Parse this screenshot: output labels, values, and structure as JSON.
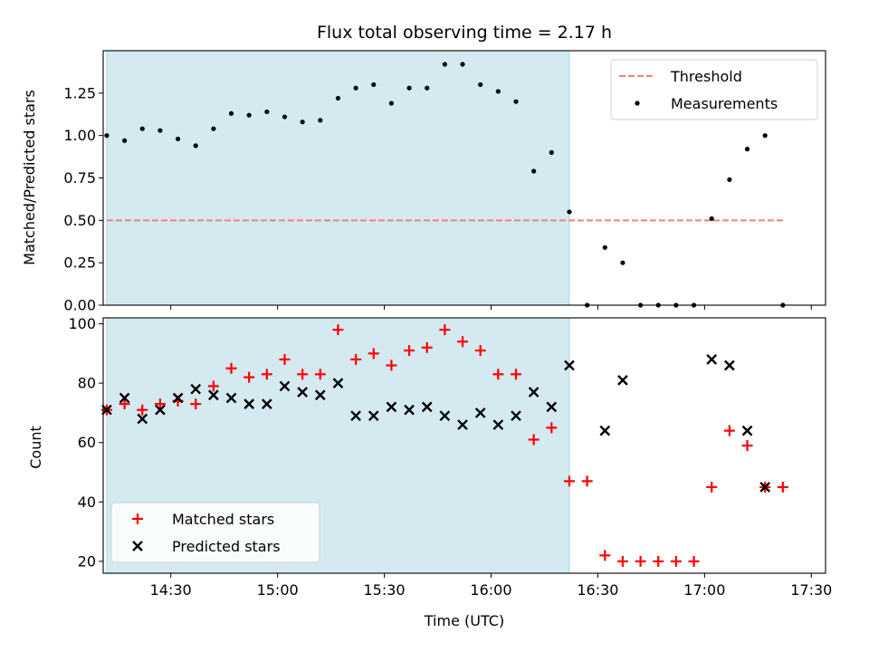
{
  "chart_data": [
    {
      "type": "scatter",
      "title": "Flux total observing time = 2.17 h",
      "xlabel": "",
      "ylabel": "Matched/Predicted stars",
      "xlim": [
        "14:11",
        "17:34"
      ],
      "ylim": [
        0,
        1.5
      ],
      "yticks": [
        0.0,
        0.25,
        0.5,
        0.75,
        1.0,
        1.25
      ],
      "ytick_labels": [
        "0.00",
        "0.25",
        "0.50",
        "0.75",
        "1.00",
        "1.25"
      ],
      "xticks": [
        "14:30",
        "15:00",
        "15:30",
        "16:00",
        "16:30",
        "17:00",
        "17:30"
      ],
      "xtick_labels": [
        "",
        "",
        "",
        "",
        "",
        "",
        ""
      ],
      "grid": false,
      "legend_position": "top-right",
      "shaded_region": {
        "from": "14:12",
        "to": "16:22",
        "color": "#d4eaf0"
      },
      "threshold": {
        "name": "Threshold",
        "value": 0.5,
        "x_from": "14:12",
        "x_to": "17:22",
        "color": "#f08080",
        "style": "dashed"
      },
      "series": [
        {
          "name": "Measurements",
          "marker": "dot",
          "color": "#000000",
          "points": [
            {
              "x": "14:12",
              "y": 1.0
            },
            {
              "x": "14:17",
              "y": 0.97
            },
            {
              "x": "14:22",
              "y": 1.04
            },
            {
              "x": "14:27",
              "y": 1.03
            },
            {
              "x": "14:32",
              "y": 0.98
            },
            {
              "x": "14:37",
              "y": 0.94
            },
            {
              "x": "14:42",
              "y": 1.04
            },
            {
              "x": "14:47",
              "y": 1.13
            },
            {
              "x": "14:52",
              "y": 1.12
            },
            {
              "x": "14:57",
              "y": 1.14
            },
            {
              "x": "15:02",
              "y": 1.11
            },
            {
              "x": "15:07",
              "y": 1.08
            },
            {
              "x": "15:12",
              "y": 1.09
            },
            {
              "x": "15:17",
              "y": 1.22
            },
            {
              "x": "15:22",
              "y": 1.28
            },
            {
              "x": "15:27",
              "y": 1.3
            },
            {
              "x": "15:32",
              "y": 1.19
            },
            {
              "x": "15:37",
              "y": 1.28
            },
            {
              "x": "15:42",
              "y": 1.28
            },
            {
              "x": "15:47",
              "y": 1.42
            },
            {
              "x": "15:52",
              "y": 1.42
            },
            {
              "x": "15:57",
              "y": 1.3
            },
            {
              "x": "16:02",
              "y": 1.26
            },
            {
              "x": "16:07",
              "y": 1.2
            },
            {
              "x": "16:12",
              "y": 0.79
            },
            {
              "x": "16:17",
              "y": 0.9
            },
            {
              "x": "16:22",
              "y": 0.55
            },
            {
              "x": "16:27",
              "y": 0.0
            },
            {
              "x": "16:32",
              "y": 0.34
            },
            {
              "x": "16:37",
              "y": 0.25
            },
            {
              "x": "16:42",
              "y": 0.0
            },
            {
              "x": "16:47",
              "y": 0.0
            },
            {
              "x": "16:52",
              "y": 0.0
            },
            {
              "x": "16:57",
              "y": 0.0
            },
            {
              "x": "17:02",
              "y": 0.51
            },
            {
              "x": "17:07",
              "y": 0.74
            },
            {
              "x": "17:12",
              "y": 0.92
            },
            {
              "x": "17:17",
              "y": 1.0
            },
            {
              "x": "17:22",
              "y": 0.0
            }
          ]
        }
      ]
    },
    {
      "type": "scatter",
      "title": "",
      "xlabel": "Time (UTC)",
      "ylabel": "Count",
      "xlim": [
        "14:11",
        "17:34"
      ],
      "ylim": [
        16,
        102
      ],
      "yticks": [
        20,
        40,
        60,
        80,
        100
      ],
      "ytick_labels": [
        "20",
        "40",
        "60",
        "80",
        "100"
      ],
      "xticks": [
        "14:30",
        "15:00",
        "15:30",
        "16:00",
        "16:30",
        "17:00",
        "17:30"
      ],
      "xtick_labels": [
        "14:30",
        "15:00",
        "15:30",
        "16:00",
        "16:30",
        "17:00",
        "17:30"
      ],
      "grid": false,
      "legend_position": "bottom-left",
      "shaded_region": {
        "from": "14:12",
        "to": "16:22",
        "color": "#d4eaf0"
      },
      "series": [
        {
          "name": "Matched stars",
          "marker": "plus",
          "color": "#ff0000",
          "points": [
            {
              "x": "14:12",
              "y": 71
            },
            {
              "x": "14:17",
              "y": 73
            },
            {
              "x": "14:22",
              "y": 71
            },
            {
              "x": "14:27",
              "y": 73
            },
            {
              "x": "14:32",
              "y": 74
            },
            {
              "x": "14:37",
              "y": 73
            },
            {
              "x": "14:42",
              "y": 79
            },
            {
              "x": "14:47",
              "y": 85
            },
            {
              "x": "14:52",
              "y": 82
            },
            {
              "x": "14:57",
              "y": 83
            },
            {
              "x": "15:02",
              "y": 88
            },
            {
              "x": "15:07",
              "y": 83
            },
            {
              "x": "15:12",
              "y": 83
            },
            {
              "x": "15:17",
              "y": 98
            },
            {
              "x": "15:22",
              "y": 88
            },
            {
              "x": "15:27",
              "y": 90
            },
            {
              "x": "15:32",
              "y": 86
            },
            {
              "x": "15:37",
              "y": 91
            },
            {
              "x": "15:42",
              "y": 92
            },
            {
              "x": "15:47",
              "y": 98
            },
            {
              "x": "15:52",
              "y": 94
            },
            {
              "x": "15:57",
              "y": 91
            },
            {
              "x": "16:02",
              "y": 83
            },
            {
              "x": "16:07",
              "y": 83
            },
            {
              "x": "16:12",
              "y": 61
            },
            {
              "x": "16:17",
              "y": 65
            },
            {
              "x": "16:22",
              "y": 47
            },
            {
              "x": "16:27",
              "y": 47
            },
            {
              "x": "16:32",
              "y": 22
            },
            {
              "x": "16:37",
              "y": 20
            },
            {
              "x": "16:42",
              "y": 20
            },
            {
              "x": "16:47",
              "y": 20
            },
            {
              "x": "16:52",
              "y": 20
            },
            {
              "x": "16:57",
              "y": 20
            },
            {
              "x": "17:02",
              "y": 45
            },
            {
              "x": "17:07",
              "y": 64
            },
            {
              "x": "17:12",
              "y": 59
            },
            {
              "x": "17:17",
              "y": 45
            },
            {
              "x": "17:22",
              "y": 45
            }
          ]
        },
        {
          "name": "Predicted stars",
          "marker": "x",
          "color": "#000000",
          "points": [
            {
              "x": "14:12",
              "y": 71
            },
            {
              "x": "14:17",
              "y": 75
            },
            {
              "x": "14:22",
              "y": 68
            },
            {
              "x": "14:27",
              "y": 71
            },
            {
              "x": "14:32",
              "y": 75
            },
            {
              "x": "14:37",
              "y": 78
            },
            {
              "x": "14:42",
              "y": 76
            },
            {
              "x": "14:47",
              "y": 75
            },
            {
              "x": "14:52",
              "y": 73
            },
            {
              "x": "14:57",
              "y": 73
            },
            {
              "x": "15:02",
              "y": 79
            },
            {
              "x": "15:07",
              "y": 77
            },
            {
              "x": "15:12",
              "y": 76
            },
            {
              "x": "15:17",
              "y": 80
            },
            {
              "x": "15:22",
              "y": 69
            },
            {
              "x": "15:27",
              "y": 69
            },
            {
              "x": "15:32",
              "y": 72
            },
            {
              "x": "15:37",
              "y": 71
            },
            {
              "x": "15:42",
              "y": 72
            },
            {
              "x": "15:47",
              "y": 69
            },
            {
              "x": "15:52",
              "y": 66
            },
            {
              "x": "15:57",
              "y": 70
            },
            {
              "x": "16:02",
              "y": 66
            },
            {
              "x": "16:07",
              "y": 69
            },
            {
              "x": "16:12",
              "y": 77
            },
            {
              "x": "16:17",
              "y": 72
            },
            {
              "x": "16:22",
              "y": 86
            },
            {
              "x": "16:32",
              "y": 64
            },
            {
              "x": "16:37",
              "y": 81
            },
            {
              "x": "17:02",
              "y": 88
            },
            {
              "x": "17:07",
              "y": 86
            },
            {
              "x": "17:12",
              "y": 64
            },
            {
              "x": "17:17",
              "y": 45
            }
          ]
        }
      ]
    }
  ]
}
